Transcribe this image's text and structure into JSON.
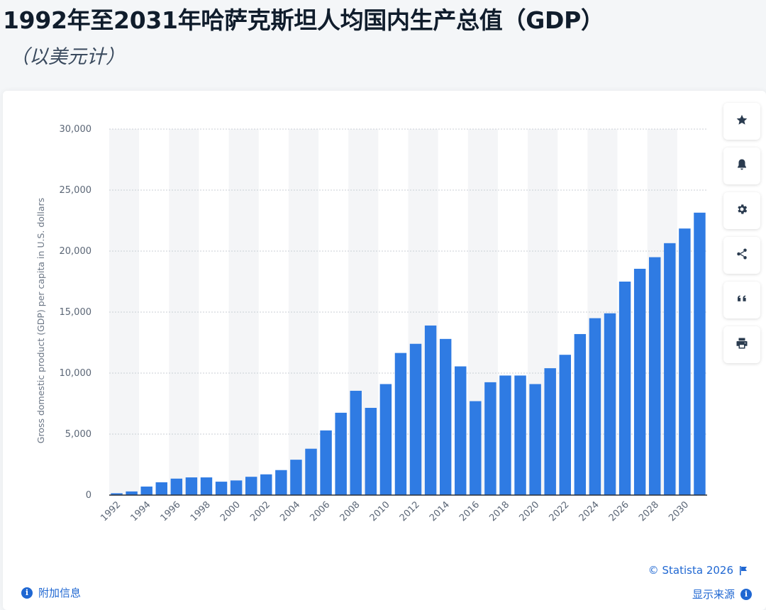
{
  "header": {
    "title": "1992年至2031年哈萨克斯坦人均国内生产总值（GDP）",
    "subtitle": "（以美元计）"
  },
  "toolbar": {
    "buttons": [
      {
        "name": "star-button",
        "icon": "star-icon"
      },
      {
        "name": "notification-button",
        "icon": "bell-icon"
      },
      {
        "name": "settings-button",
        "icon": "gear-icon"
      },
      {
        "name": "share-button",
        "icon": "share-icon"
      },
      {
        "name": "cite-button",
        "icon": "quote-icon"
      },
      {
        "name": "print-button",
        "icon": "printer-icon"
      }
    ]
  },
  "footer": {
    "credit": "© Statista 2026",
    "additional_info": "附加信息",
    "show_source": "显示来源"
  },
  "colors": {
    "bar": "#2f7be3",
    "accent": "#1f67d2",
    "grid": "#c9ced6",
    "band": "#f4f5f7"
  },
  "chart_data": {
    "type": "bar",
    "title": "1992年至2031年哈萨克斯坦人均国内生产总值（GDP）",
    "subtitle": "（以美元计）",
    "xlabel": "",
    "ylabel": "Gross domestic product (GDP) per capita in U.S. dollars",
    "ylim": [
      0,
      30000
    ],
    "yticks": [
      0,
      5000,
      10000,
      15000,
      20000,
      25000,
      30000
    ],
    "ytick_labels": [
      "0",
      "5,000",
      "10,000",
      "15,000",
      "20,000",
      "25,000",
      "30,000"
    ],
    "grid": true,
    "categories": [
      "1992",
      "1993",
      "1994",
      "1995",
      "1996",
      "1997",
      "1998",
      "1999",
      "2000",
      "2001",
      "2002",
      "2003",
      "2004",
      "2005",
      "2006",
      "2007",
      "2008",
      "2009",
      "2010",
      "2011",
      "2012",
      "2013",
      "2014",
      "2015",
      "2016",
      "2017",
      "2018",
      "2019",
      "2020",
      "2021",
      "2022",
      "2023",
      "2024",
      "2025",
      "2026",
      "2027",
      "2028",
      "2029",
      "2030",
      "2031"
    ],
    "xtick_labels": [
      "1992",
      "1994",
      "1996",
      "1998",
      "2000",
      "2002",
      "2004",
      "2006",
      "2008",
      "2010",
      "2012",
      "2014",
      "2016",
      "2018",
      "2020",
      "2022",
      "2024",
      "2026",
      "2028",
      "2030"
    ],
    "values": [
      150,
      300,
      700,
      1050,
      1350,
      1450,
      1450,
      1100,
      1200,
      1500,
      1700,
      2050,
      2900,
      3800,
      5300,
      6750,
      8550,
      7150,
      9100,
      11650,
      12400,
      13900,
      12800,
      10550,
      7700,
      9250,
      9800,
      9800,
      9100,
      10400,
      11500,
      13200,
      14500,
      14900,
      17500,
      18550,
      19500,
      20650,
      21850,
      23150
    ]
  }
}
